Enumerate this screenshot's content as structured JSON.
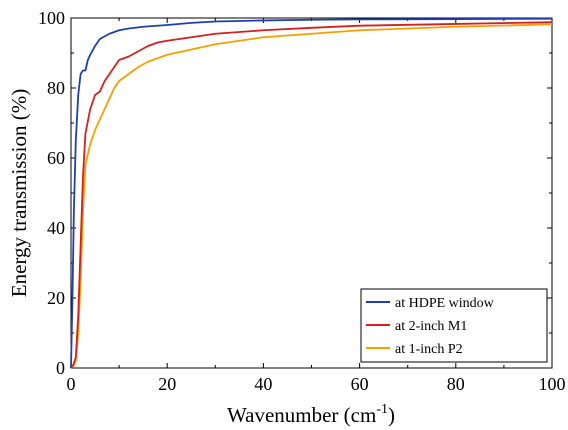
{
  "chart_data": {
    "type": "line",
    "xlabel": "Wavenumber (cm",
    "xlabel_sup": "-1",
    "xlabel_suffix": ")",
    "ylabel": "Energy transmission (%)",
    "xlim": [
      0,
      100
    ],
    "ylim": [
      0,
      100
    ],
    "xticks": [
      0,
      20,
      40,
      60,
      80,
      100
    ],
    "yticks": [
      0,
      20,
      40,
      60,
      80,
      100
    ],
    "grid": false,
    "legend_position": "bottom-right",
    "series": [
      {
        "name": "at HDPE window",
        "color": "#1f3fb0",
        "x": [
          0,
          0.3,
          0.6,
          1,
          1.5,
          2,
          2.5,
          3,
          3.5,
          4,
          5,
          6,
          8,
          10,
          12,
          15,
          20,
          25,
          30,
          40,
          50,
          60,
          80,
          100
        ],
        "y": [
          0,
          20,
          45,
          65,
          78,
          84,
          85,
          85,
          88,
          89.5,
          92,
          94,
          95.5,
          96.5,
          97,
          97.5,
          98,
          98.6,
          99,
          99.3,
          99.5,
          99.6,
          99.7,
          99.8
        ]
      },
      {
        "name": "at 2-inch M1",
        "color": "#d42020",
        "x": [
          0,
          0.5,
          1,
          1.5,
          2,
          2.5,
          3,
          4,
          5,
          6,
          7,
          8,
          9,
          10,
          12,
          14,
          16,
          18,
          20,
          25,
          30,
          40,
          50,
          60,
          80,
          100
        ],
        "y": [
          0,
          1,
          3,
          15,
          35,
          55,
          67,
          74,
          78,
          79,
          82,
          84,
          86,
          88,
          89,
          90.5,
          92,
          93,
          93.5,
          94.5,
          95.5,
          96.5,
          97.2,
          97.8,
          98.3,
          98.8
        ]
      },
      {
        "name": "at 1-inch P2",
        "color": "#f5a000",
        "x": [
          0,
          0.5,
          1,
          1.5,
          2,
          2.5,
          3,
          4,
          5,
          6,
          7,
          8,
          9,
          10,
          12,
          14,
          16,
          18,
          20,
          25,
          30,
          40,
          50,
          60,
          80,
          100
        ],
        "y": [
          0,
          0.5,
          2,
          10,
          25,
          45,
          58,
          64,
          68,
          71,
          74,
          77,
          80,
          82,
          84,
          86,
          87.5,
          88.5,
          89.5,
          91,
          92.5,
          94.5,
          95.5,
          96.5,
          97.5,
          98.2
        ]
      }
    ]
  }
}
